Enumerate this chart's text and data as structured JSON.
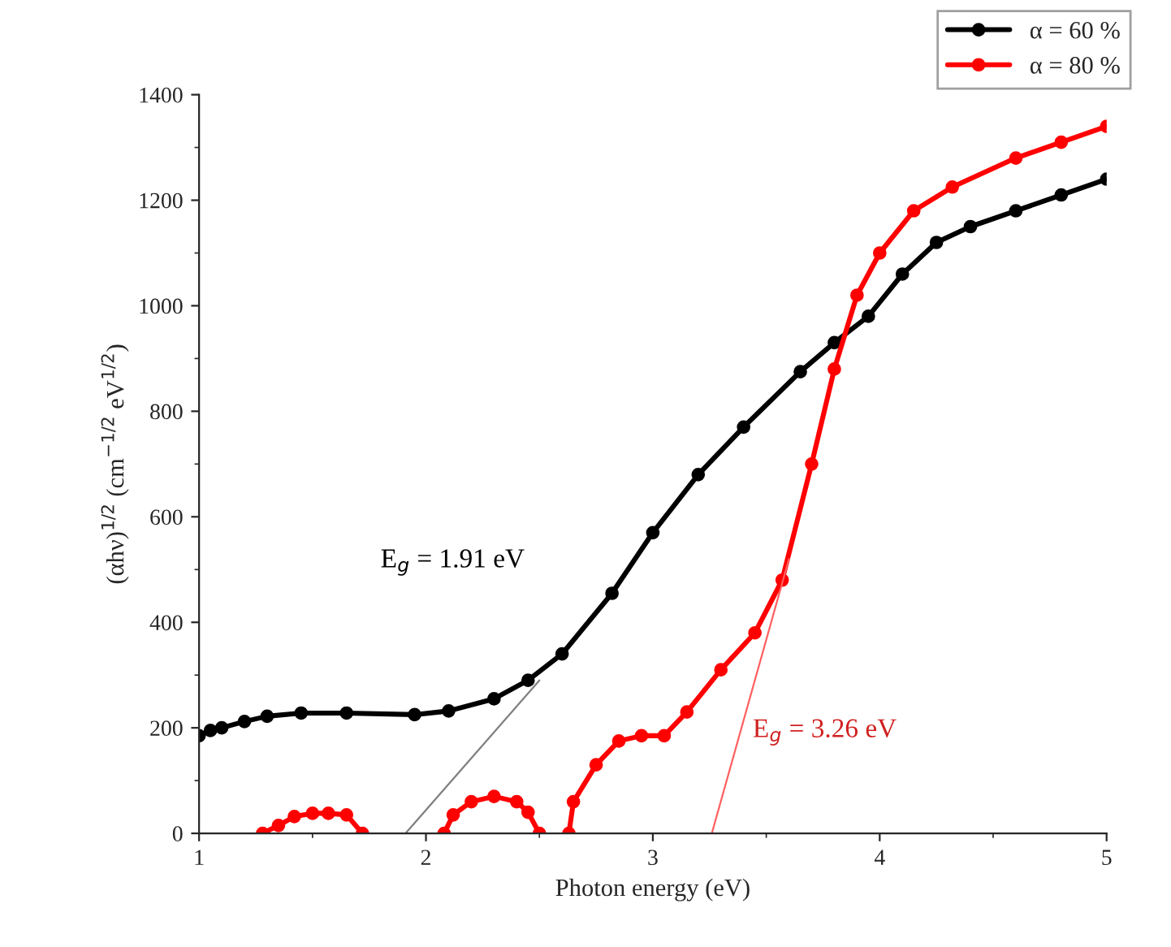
{
  "chart_data": {
    "type": "line",
    "xlabel": "Photon energy (eV)",
    "ylabel": "(αhν)$^{1/2}$ (cm$^{−1/2}$ eV$^{1/2}$)",
    "xlim": [
      1,
      5
    ],
    "xticks": [
      1,
      2,
      3,
      4,
      5
    ],
    "ylim": [
      0,
      1400
    ],
    "yticks": [
      0,
      200,
      400,
      600,
      800,
      1000,
      1200,
      1400
    ],
    "grid": false,
    "legend": "top right",
    "series": [
      {
        "name": "α = 60 %",
        "color": "#000000",
        "marker": "circle",
        "x": [
          1.0,
          1.05,
          1.1,
          1.2,
          1.3,
          1.45,
          1.65,
          1.95,
          2.1,
          2.3,
          2.45,
          2.6,
          2.82,
          3.0,
          3.2,
          3.4,
          3.65,
          3.8,
          3.95,
          4.1,
          4.25,
          4.4,
          4.6,
          4.8,
          5.0
        ],
        "values": [
          185,
          195,
          200,
          212,
          222,
          228,
          228,
          225,
          232,
          255,
          290,
          340,
          455,
          570,
          680,
          770,
          875,
          930,
          980,
          1060,
          1120,
          1150,
          1180,
          1210,
          1240
        ]
      },
      {
        "name": "α = 80 %",
        "color": "#ff0000",
        "marker": "circle",
        "x": [
          1.28,
          1.35,
          1.42,
          1.5,
          1.57,
          1.65,
          1.72,
          1.8,
          2.08,
          2.12,
          2.2,
          2.3,
          2.4,
          2.45,
          2.5,
          2.55,
          2.63,
          2.65,
          2.75,
          2.85,
          2.95,
          3.05,
          3.15,
          3.3,
          3.45,
          3.57,
          3.7,
          3.8,
          3.9,
          4.0,
          4.15,
          4.32,
          4.6,
          4.8,
          5.0
        ],
        "values": [
          0,
          15,
          32,
          38,
          38,
          35,
          0,
          null,
          0,
          35,
          60,
          70,
          60,
          40,
          0,
          null,
          0,
          60,
          130,
          175,
          185,
          185,
          230,
          310,
          380,
          480,
          700,
          880,
          1020,
          1100,
          1180,
          1225,
          1280,
          1310,
          1340
        ]
      },
      {
        "type": "line",
        "color": "#808080",
        "marker": "none",
        "x": [
          1.91,
          2.5
        ],
        "values": [
          0,
          290
        ]
      },
      {
        "type": "line",
        "color": "#ff6060",
        "marker": "none",
        "x": [
          3.26,
          3.6
        ],
        "values": [
          0,
          520
        ]
      }
    ],
    "annotations": [
      "E$_{g}$ = 1.91 eV",
      "E$_{g}$ = 3.26 eV"
    ]
  }
}
